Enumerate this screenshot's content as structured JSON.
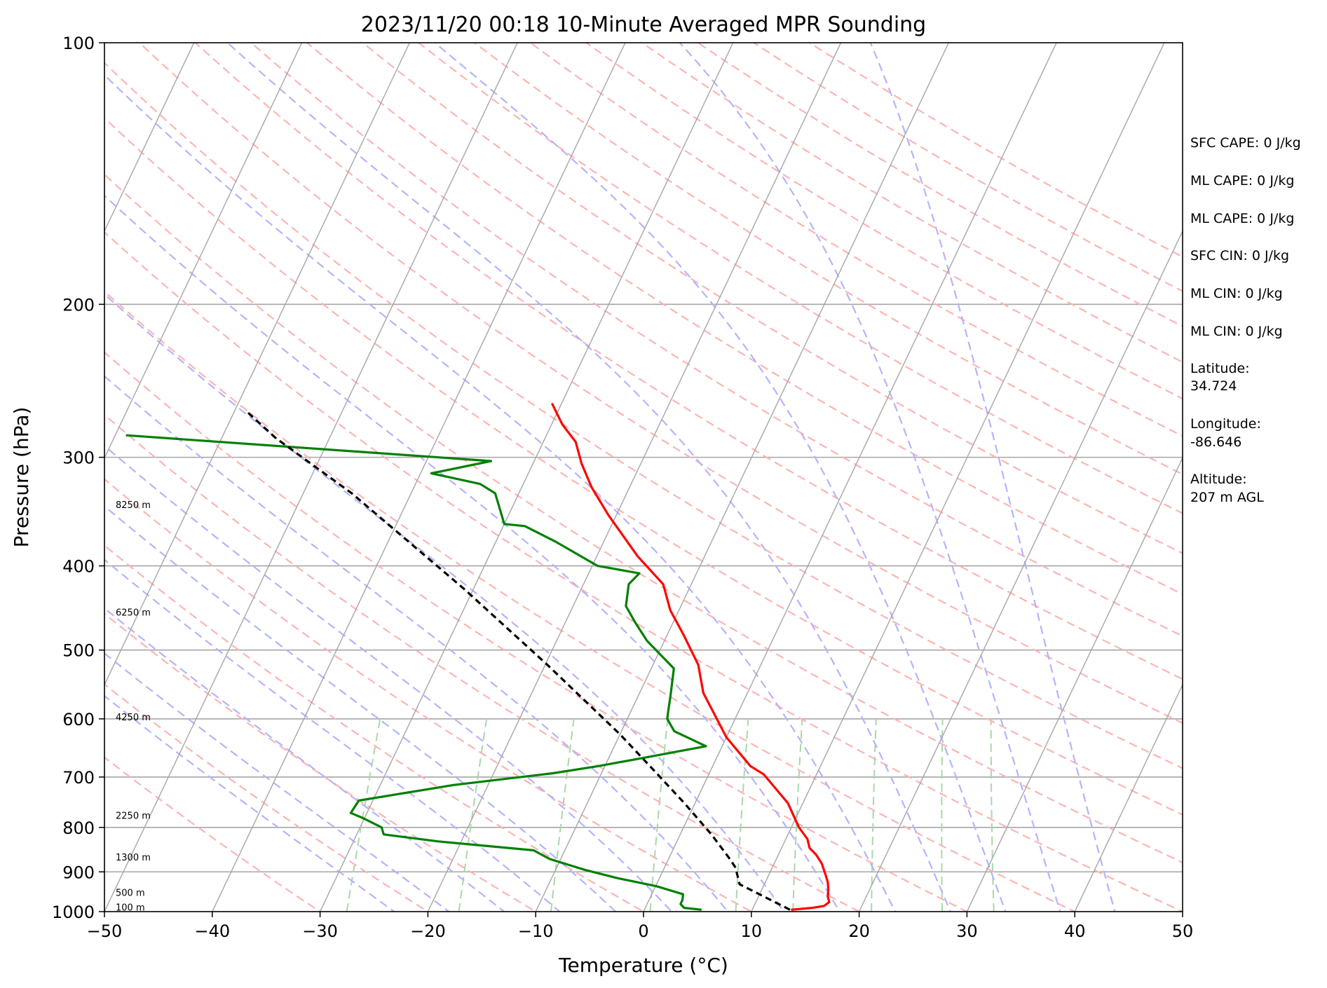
{
  "chart_data": {
    "type": "line",
    "title": "2023/11/20 00:18 10-Minute Averaged MPR Sounding",
    "xlabel": "Temperature (°C)",
    "ylabel": "Pressure (hPa)",
    "xlim": [
      -50,
      50
    ],
    "ylim": [
      1000,
      100
    ],
    "yscale": "log",
    "skew": "skew-T log-P",
    "grid": true,
    "x_ticks": [
      "−50",
      "−40",
      "−30",
      "−20",
      "−10",
      "0",
      "10",
      "20",
      "30",
      "40",
      "50"
    ],
    "y_ticks": [
      {
        "value": 100,
        "label": "100"
      },
      {
        "value": 200,
        "label": "200"
      },
      {
        "value": 300,
        "label": "300"
      },
      {
        "value": 400,
        "label": "400"
      },
      {
        "value": 500,
        "label": "500"
      },
      {
        "value": 600,
        "label": "600"
      },
      {
        "value": 700,
        "label": "700"
      },
      {
        "value": 800,
        "label": "800"
      },
      {
        "value": 900,
        "label": "900"
      },
      {
        "value": 1000,
        "label": "1000"
      }
    ],
    "colors": {
      "temperature": "#ff0000",
      "dewpoint": "#008000",
      "parcel": "#000000",
      "isotherm": "#a6a6a6",
      "dry_adiabat": "#ffb3b3",
      "moist_adiabat": "#b3b3ff",
      "mixing_ratio": "#a8d8a8"
    },
    "series": [
      {
        "key": "temperature",
        "style": "solid",
        "points": [
          [
            13.6,
            995
          ],
          [
            15.5,
            990
          ],
          [
            16.5,
            985
          ],
          [
            16.8,
            975
          ],
          [
            16.4,
            960
          ],
          [
            16.2,
            945
          ],
          [
            15.8,
            925
          ],
          [
            15.2,
            905
          ],
          [
            14.4,
            880
          ],
          [
            13.5,
            860
          ],
          [
            12.6,
            845
          ],
          [
            12.0,
            825
          ],
          [
            10.7,
            800
          ],
          [
            8.6,
            750
          ],
          [
            5.1,
            695
          ],
          [
            3.5,
            680
          ],
          [
            0.0,
            630
          ],
          [
            -4.1,
            560
          ],
          [
            -5.8,
            520
          ],
          [
            -8.5,
            480
          ],
          [
            -10.8,
            450
          ],
          [
            -12.6,
            420
          ],
          [
            -16.2,
            390
          ],
          [
            -20.7,
            350
          ],
          [
            -23.5,
            325
          ],
          [
            -25.5,
            305
          ],
          [
            -27.0,
            288
          ],
          [
            -29.0,
            275
          ],
          [
            -30.0,
            267
          ],
          [
            -30.9,
            260
          ]
        ]
      },
      {
        "key": "dewpoint",
        "style": "solid",
        "points": [
          [
            5.3,
            995
          ],
          [
            3.6,
            990
          ],
          [
            3.1,
            980
          ],
          [
            3.1,
            970
          ],
          [
            2.9,
            955
          ],
          [
            0.1,
            935
          ],
          [
            -3.9,
            915
          ],
          [
            -7.3,
            895
          ],
          [
            -11.0,
            870
          ],
          [
            -12.9,
            850
          ],
          [
            -22.2,
            830
          ],
          [
            -27.5,
            815
          ],
          [
            -28.0,
            800
          ],
          [
            -30.2,
            780
          ],
          [
            -31.5,
            770
          ],
          [
            -31.3,
            745
          ],
          [
            -23.2,
            715
          ],
          [
            -14.5,
            693
          ],
          [
            -10.6,
            680
          ],
          [
            -6.7,
            665
          ],
          [
            -1.5,
            645
          ],
          [
            -5.1,
            620
          ],
          [
            -6.3,
            600
          ],
          [
            -6.6,
            585
          ],
          [
            -7.0,
            565
          ],
          [
            -7.9,
            525
          ],
          [
            -11.6,
            488
          ],
          [
            -13.5,
            465
          ],
          [
            -15.1,
            445
          ],
          [
            -15.8,
            420
          ],
          [
            -15.3,
            408
          ],
          [
            -19.5,
            400
          ],
          [
            -24.5,
            375
          ],
          [
            -28.0,
            360
          ],
          [
            -30.0,
            358
          ],
          [
            -31.0,
            345
          ],
          [
            -32.2,
            330
          ],
          [
            -34.0,
            322
          ],
          [
            -39.0,
            313
          ],
          [
            -34.0,
            303
          ],
          [
            -69.0,
            283
          ]
        ]
      },
      {
        "key": "parcel",
        "style": "dashed",
        "points": [
          [
            13.5,
            995
          ],
          [
            7.7,
            930
          ],
          [
            6.6,
            890
          ],
          [
            5.6,
            868
          ],
          [
            2.9,
            815
          ],
          [
            -1.0,
            750
          ],
          [
            -5.1,
            690
          ],
          [
            -10.0,
            625
          ],
          [
            -19.8,
            520
          ],
          [
            -30.9,
            425
          ],
          [
            -45.5,
            330
          ],
          [
            -55.0,
            285
          ],
          [
            -59.0,
            265
          ]
        ]
      }
    ],
    "height_labels": [
      {
        "label": "100 m",
        "pressure": 988
      },
      {
        "label": "500 m",
        "pressure": 950
      },
      {
        "label": "1300 m",
        "pressure": 865
      },
      {
        "label": "2250 m",
        "pressure": 775
      },
      {
        "label": "4250 m",
        "pressure": 597
      },
      {
        "label": "6250 m",
        "pressure": 452
      },
      {
        "label": "8250 m",
        "pressure": 340
      }
    ]
  },
  "indices": [
    "SFC CAPE: 0 J/kg",
    "ML CAPE: 0 J/kg",
    "ML CAPE: 0 J/kg",
    "SFC CIN: 0 J/kg",
    "ML CIN: 0 J/kg",
    "ML CIN: 0 J/kg"
  ],
  "station": {
    "latitude_label": "Latitude:",
    "latitude_value": "34.724",
    "longitude_label": "Longitude:",
    "longitude_value": "-86.646",
    "altitude_label": "Altitude:",
    "altitude_value": "207 m AGL"
  }
}
